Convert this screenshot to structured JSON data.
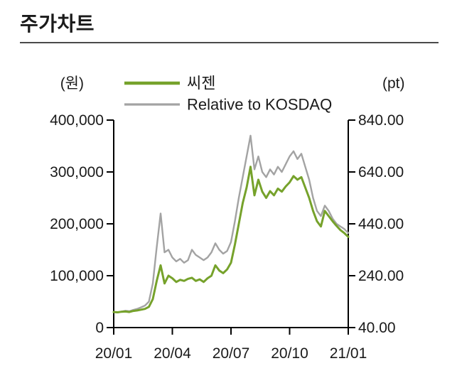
{
  "page": {
    "title": "주가차트"
  },
  "chart_data": {
    "type": "line",
    "title": "주가차트",
    "grid": false,
    "legend_position": "top-center",
    "x_range": [
      0,
      12
    ],
    "x_tick_values": [
      0,
      3,
      6,
      9,
      12
    ],
    "x_tick_labels": [
      "20/01",
      "20/04",
      "20/07",
      "20/10",
      "21/01"
    ],
    "left_axis": {
      "unit_label": "(원)",
      "min": 0,
      "max": 400000,
      "tick_values": [
        400000,
        300000,
        200000,
        100000,
        0
      ],
      "tick_labels": [
        "400,000",
        "300,000",
        "200,000",
        "100,000",
        "0"
      ]
    },
    "right_axis": {
      "unit_label": "(pt)",
      "min": 40,
      "max": 840,
      "tick_values": [
        840,
        640,
        440,
        240,
        40
      ],
      "tick_labels": [
        "840.00",
        "640.00",
        "440.00",
        "240.00",
        "40.00"
      ]
    },
    "x": [
      0,
      0.2,
      0.4,
      0.6,
      0.8,
      1,
      1.2,
      1.4,
      1.6,
      1.8,
      2,
      2.2,
      2.4,
      2.6,
      2.8,
      3,
      3.2,
      3.4,
      3.6,
      3.8,
      4,
      4.2,
      4.4,
      4.6,
      4.8,
      5,
      5.2,
      5.4,
      5.6,
      5.8,
      6,
      6.2,
      6.4,
      6.6,
      6.8,
      7,
      7.2,
      7.4,
      7.6,
      7.8,
      8,
      8.2,
      8.4,
      8.6,
      8.8,
      9,
      9.2,
      9.4,
      9.6,
      9.8,
      10,
      10.2,
      10.4,
      10.6,
      10.8,
      11,
      11.2,
      11.4,
      11.6,
      11.8,
      12
    ],
    "series": [
      {
        "name": "씨젠",
        "axis": "left",
        "color": "#76a22b",
        "stroke_width": 3,
        "values": [
          30000,
          29500,
          30500,
          31000,
          30000,
          32000,
          33000,
          34500,
          36000,
          40000,
          55000,
          90000,
          120000,
          85000,
          100000,
          95000,
          88000,
          92000,
          90000,
          94000,
          96000,
          90000,
          93000,
          88000,
          95000,
          100000,
          120000,
          110000,
          105000,
          112000,
          125000,
          160000,
          200000,
          240000,
          270000,
          310000,
          255000,
          285000,
          262000,
          250000,
          263000,
          255000,
          268000,
          262000,
          272000,
          280000,
          292000,
          285000,
          290000,
          270000,
          250000,
          225000,
          205000,
          195000,
          225000,
          215000,
          205000,
          196000,
          188000,
          182000,
          175000
        ]
      },
      {
        "name": "Relative to KOSDAQ",
        "axis": "right",
        "color": "#a3a3a3",
        "stroke_width": 2.4,
        "values": [
          100,
          98,
          102,
          105,
          103,
          108,
          112,
          118,
          125,
          140,
          210,
          350,
          480,
          330,
          340,
          310,
          295,
          305,
          290,
          300,
          340,
          320,
          310,
          300,
          310,
          330,
          365,
          340,
          325,
          335,
          370,
          450,
          540,
          620,
          700,
          780,
          650,
          700,
          640,
          620,
          650,
          630,
          660,
          640,
          670,
          700,
          720,
          690,
          710,
          660,
          610,
          540,
          490,
          470,
          510,
          490,
          460,
          440,
          430,
          420,
          405
        ]
      }
    ]
  }
}
